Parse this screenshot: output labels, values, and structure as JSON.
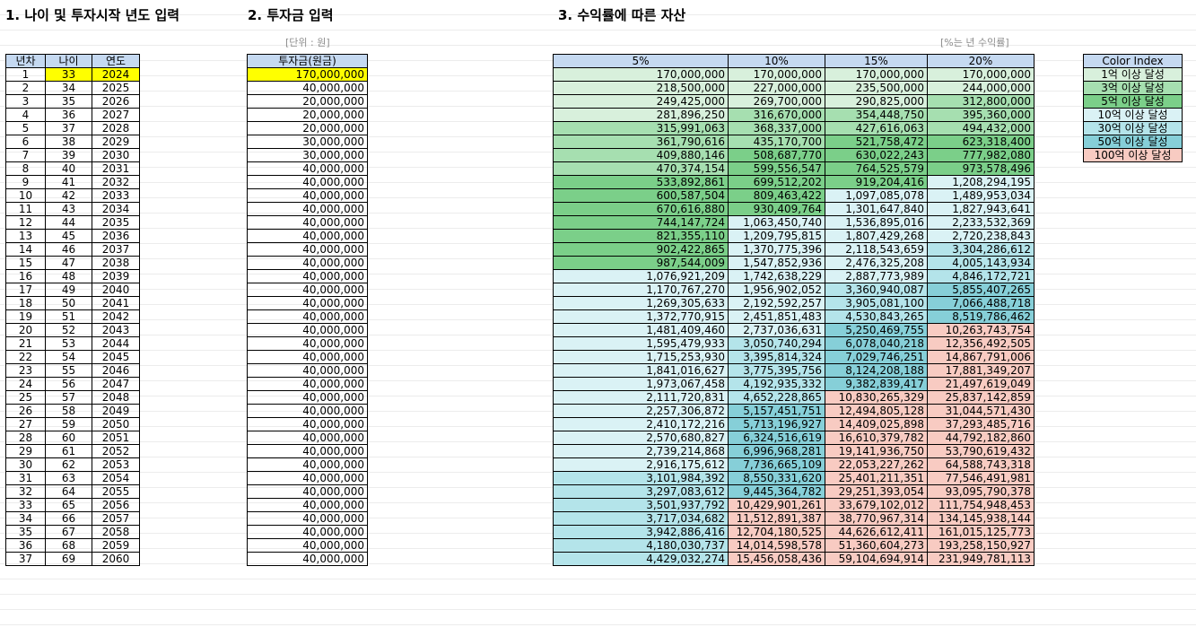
{
  "titles": {
    "age_year": "1. 나이 및 투자시작 년도 입력",
    "investment": "2. 투자금 입력",
    "assets": "3. 수익률에 따른 자산"
  },
  "notes": {
    "unit": "[단위 : 원]",
    "rate": "[%는 년 수익률]"
  },
  "left_headers": [
    "년차",
    "나이",
    "연도"
  ],
  "invest_header": "투자금(원금)",
  "asset_headers": [
    "5%",
    "10%",
    "15%",
    "20%"
  ],
  "legend": {
    "header": "Color Index",
    "items": [
      "1억 이상 달성",
      "3억 이상 달성",
      "5억 이상 달성",
      "10억 이상 달성",
      "30억 이상 달성",
      "50억 이상 달성",
      "100억 이상 달성"
    ]
  },
  "colors": {
    "header": "#c5d9f1",
    "input_highlight": "#ffff00",
    "lvl1": "#d8f0dc",
    "lvl2": "#a6dfb0",
    "lvl3": "#7bcf89",
    "lvl4": "#daf2f5",
    "lvl5": "#b4e4ea",
    "lvl6": "#86cfd8",
    "lvl7": "#f8cbc2"
  },
  "rows": [
    {
      "n": "1",
      "age": "33",
      "year": "2024",
      "inv": "170,000,000",
      "a": [
        "170,000,000",
        "170,000,000",
        "170,000,000",
        "170,000,000"
      ]
    },
    {
      "n": "2",
      "age": "34",
      "year": "2025",
      "inv": "40,000,000",
      "a": [
        "218,500,000",
        "227,000,000",
        "235,500,000",
        "244,000,000"
      ]
    },
    {
      "n": "3",
      "age": "35",
      "year": "2026",
      "inv": "20,000,000",
      "a": [
        "249,425,000",
        "269,700,000",
        "290,825,000",
        "312,800,000"
      ]
    },
    {
      "n": "4",
      "age": "36",
      "year": "2027",
      "inv": "20,000,000",
      "a": [
        "281,896,250",
        "316,670,000",
        "354,448,750",
        "395,360,000"
      ]
    },
    {
      "n": "5",
      "age": "37",
      "year": "2028",
      "inv": "20,000,000",
      "a": [
        "315,991,063",
        "368,337,000",
        "427,616,063",
        "494,432,000"
      ]
    },
    {
      "n": "6",
      "age": "38",
      "year": "2029",
      "inv": "30,000,000",
      "a": [
        "361,790,616",
        "435,170,700",
        "521,758,472",
        "623,318,400"
      ]
    },
    {
      "n": "7",
      "age": "39",
      "year": "2030",
      "inv": "30,000,000",
      "a": [
        "409,880,146",
        "508,687,770",
        "630,022,243",
        "777,982,080"
      ]
    },
    {
      "n": "8",
      "age": "40",
      "year": "2031",
      "inv": "40,000,000",
      "a": [
        "470,374,154",
        "599,556,547",
        "764,525,579",
        "973,578,496"
      ]
    },
    {
      "n": "9",
      "age": "41",
      "year": "2032",
      "inv": "40,000,000",
      "a": [
        "533,892,861",
        "699,512,202",
        "919,204,416",
        "1,208,294,195"
      ]
    },
    {
      "n": "10",
      "age": "42",
      "year": "2033",
      "inv": "40,000,000",
      "a": [
        "600,587,504",
        "809,463,422",
        "1,097,085,078",
        "1,489,953,034"
      ]
    },
    {
      "n": "11",
      "age": "43",
      "year": "2034",
      "inv": "40,000,000",
      "a": [
        "670,616,880",
        "930,409,764",
        "1,301,647,840",
        "1,827,943,641"
      ]
    },
    {
      "n": "12",
      "age": "44",
      "year": "2035",
      "inv": "40,000,000",
      "a": [
        "744,147,724",
        "1,063,450,740",
        "1,536,895,016",
        "2,233,532,369"
      ]
    },
    {
      "n": "13",
      "age": "45",
      "year": "2036",
      "inv": "40,000,000",
      "a": [
        "821,355,110",
        "1,209,795,815",
        "1,807,429,268",
        "2,720,238,843"
      ]
    },
    {
      "n": "14",
      "age": "46",
      "year": "2037",
      "inv": "40,000,000",
      "a": [
        "902,422,865",
        "1,370,775,396",
        "2,118,543,659",
        "3,304,286,612"
      ]
    },
    {
      "n": "15",
      "age": "47",
      "year": "2038",
      "inv": "40,000,000",
      "a": [
        "987,544,009",
        "1,547,852,936",
        "2,476,325,208",
        "4,005,143,934"
      ]
    },
    {
      "n": "16",
      "age": "48",
      "year": "2039",
      "inv": "40,000,000",
      "a": [
        "1,076,921,209",
        "1,742,638,229",
        "2,887,773,989",
        "4,846,172,721"
      ]
    },
    {
      "n": "17",
      "age": "49",
      "year": "2040",
      "inv": "40,000,000",
      "a": [
        "1,170,767,270",
        "1,956,902,052",
        "3,360,940,087",
        "5,855,407,265"
      ]
    },
    {
      "n": "18",
      "age": "50",
      "year": "2041",
      "inv": "40,000,000",
      "a": [
        "1,269,305,633",
        "2,192,592,257",
        "3,905,081,100",
        "7,066,488,718"
      ]
    },
    {
      "n": "19",
      "age": "51",
      "year": "2042",
      "inv": "40,000,000",
      "a": [
        "1,372,770,915",
        "2,451,851,483",
        "4,530,843,265",
        "8,519,786,462"
      ]
    },
    {
      "n": "20",
      "age": "52",
      "year": "2043",
      "inv": "40,000,000",
      "a": [
        "1,481,409,460",
        "2,737,036,631",
        "5,250,469,755",
        "10,263,743,754"
      ]
    },
    {
      "n": "21",
      "age": "53",
      "year": "2044",
      "inv": "40,000,000",
      "a": [
        "1,595,479,933",
        "3,050,740,294",
        "6,078,040,218",
        "12,356,492,505"
      ]
    },
    {
      "n": "22",
      "age": "54",
      "year": "2045",
      "inv": "40,000,000",
      "a": [
        "1,715,253,930",
        "3,395,814,324",
        "7,029,746,251",
        "14,867,791,006"
      ]
    },
    {
      "n": "23",
      "age": "55",
      "year": "2046",
      "inv": "40,000,000",
      "a": [
        "1,841,016,627",
        "3,775,395,756",
        "8,124,208,188",
        "17,881,349,207"
      ]
    },
    {
      "n": "24",
      "age": "56",
      "year": "2047",
      "inv": "40,000,000",
      "a": [
        "1,973,067,458",
        "4,192,935,332",
        "9,382,839,417",
        "21,497,619,049"
      ]
    },
    {
      "n": "25",
      "age": "57",
      "year": "2048",
      "inv": "40,000,000",
      "a": [
        "2,111,720,831",
        "4,652,228,865",
        "10,830,265,329",
        "25,837,142,859"
      ]
    },
    {
      "n": "26",
      "age": "58",
      "year": "2049",
      "inv": "40,000,000",
      "a": [
        "2,257,306,872",
        "5,157,451,751",
        "12,494,805,128",
        "31,044,571,430"
      ]
    },
    {
      "n": "27",
      "age": "59",
      "year": "2050",
      "inv": "40,000,000",
      "a": [
        "2,410,172,216",
        "5,713,196,927",
        "14,409,025,898",
        "37,293,485,716"
      ]
    },
    {
      "n": "28",
      "age": "60",
      "year": "2051",
      "inv": "40,000,000",
      "a": [
        "2,570,680,827",
        "6,324,516,619",
        "16,610,379,782",
        "44,792,182,860"
      ]
    },
    {
      "n": "29",
      "age": "61",
      "year": "2052",
      "inv": "40,000,000",
      "a": [
        "2,739,214,868",
        "6,996,968,281",
        "19,141,936,750",
        "53,790,619,432"
      ]
    },
    {
      "n": "30",
      "age": "62",
      "year": "2053",
      "inv": "40,000,000",
      "a": [
        "2,916,175,612",
        "7,736,665,109",
        "22,053,227,262",
        "64,588,743,318"
      ]
    },
    {
      "n": "31",
      "age": "63",
      "year": "2054",
      "inv": "40,000,000",
      "a": [
        "3,101,984,392",
        "8,550,331,620",
        "25,401,211,351",
        "77,546,491,981"
      ]
    },
    {
      "n": "32",
      "age": "64",
      "year": "2055",
      "inv": "40,000,000",
      "a": [
        "3,297,083,612",
        "9,445,364,782",
        "29,251,393,054",
        "93,095,790,378"
      ]
    },
    {
      "n": "33",
      "age": "65",
      "year": "2056",
      "inv": "40,000,000",
      "a": [
        "3,501,937,792",
        "10,429,901,261",
        "33,679,102,012",
        "111,754,948,453"
      ]
    },
    {
      "n": "34",
      "age": "66",
      "year": "2057",
      "inv": "40,000,000",
      "a": [
        "3,717,034,682",
        "11,512,891,387",
        "38,770,967,314",
        "134,145,938,144"
      ]
    },
    {
      "n": "35",
      "age": "67",
      "year": "2058",
      "inv": "40,000,000",
      "a": [
        "3,942,886,416",
        "12,704,180,525",
        "44,626,612,411",
        "161,015,125,773"
      ]
    },
    {
      "n": "36",
      "age": "68",
      "year": "2059",
      "inv": "40,000,000",
      "a": [
        "4,180,030,737",
        "14,014,598,578",
        "51,360,604,273",
        "193,258,150,927"
      ]
    },
    {
      "n": "37",
      "age": "69",
      "year": "2060",
      "inv": "40,000,000",
      "a": [
        "4,429,032,274",
        "15,456,058,436",
        "59,104,694,914",
        "231,949,781,113"
      ]
    }
  ]
}
